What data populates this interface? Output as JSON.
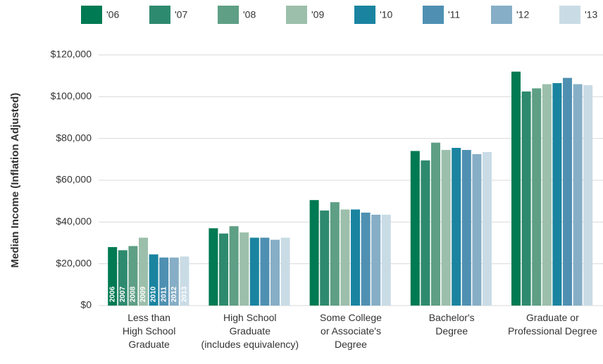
{
  "chart_data": {
    "type": "bar",
    "y_axis_label": "Median Income (Inflation Adjusted)",
    "categories": [
      "Less than\nHigh School\nGraduate",
      "High School\nGraduate\n(includes equivalency)",
      "Some College\nor Associate's\nDegree",
      "Bachelor's\nDegree",
      "Graduate or\nProfessional Degree"
    ],
    "series": [
      {
        "name": "'06",
        "color": "#007a52",
        "values": [
          28000,
          37000,
          50500,
          74000,
          112000
        ]
      },
      {
        "name": "'07",
        "color": "#2e8a6e",
        "values": [
          26500,
          34500,
          45500,
          69500,
          102500
        ]
      },
      {
        "name": "'08",
        "color": "#5e9f85",
        "values": [
          28500,
          38000,
          49500,
          78000,
          104000
        ]
      },
      {
        "name": "'09",
        "color": "#9cbfab",
        "values": [
          32500,
          35000,
          46000,
          74500,
          106000
        ]
      },
      {
        "name": "'10",
        "color": "#1a84a0",
        "values": [
          24500,
          32500,
          46000,
          75500,
          106500
        ]
      },
      {
        "name": "'11",
        "color": "#4f90b2",
        "values": [
          23000,
          32500,
          44500,
          74500,
          109000
        ]
      },
      {
        "name": "'12",
        "color": "#86aec6",
        "values": [
          23000,
          31500,
          43500,
          72500,
          106000
        ]
      },
      {
        "name": "'13",
        "color": "#c9dce6",
        "values": [
          23500,
          32500,
          43500,
          73500,
          105500
        ]
      }
    ],
    "bar_labels": [
      "2006",
      "2007",
      "2008",
      "2009",
      "2010",
      "2011",
      "2012",
      "2013"
    ],
    "ylim": [
      0,
      120000
    ],
    "yticks": [
      {
        "value": 0,
        "label": "$0"
      },
      {
        "value": 20000,
        "label": "$20,000"
      },
      {
        "value": 40000,
        "label": "$40,000"
      },
      {
        "value": 60000,
        "label": "$60,000"
      },
      {
        "value": 80000,
        "label": "$80,000"
      },
      {
        "value": 100000,
        "label": "$100,000"
      },
      {
        "value": 120000,
        "label": "$120,000"
      }
    ],
    "grid": true
  }
}
